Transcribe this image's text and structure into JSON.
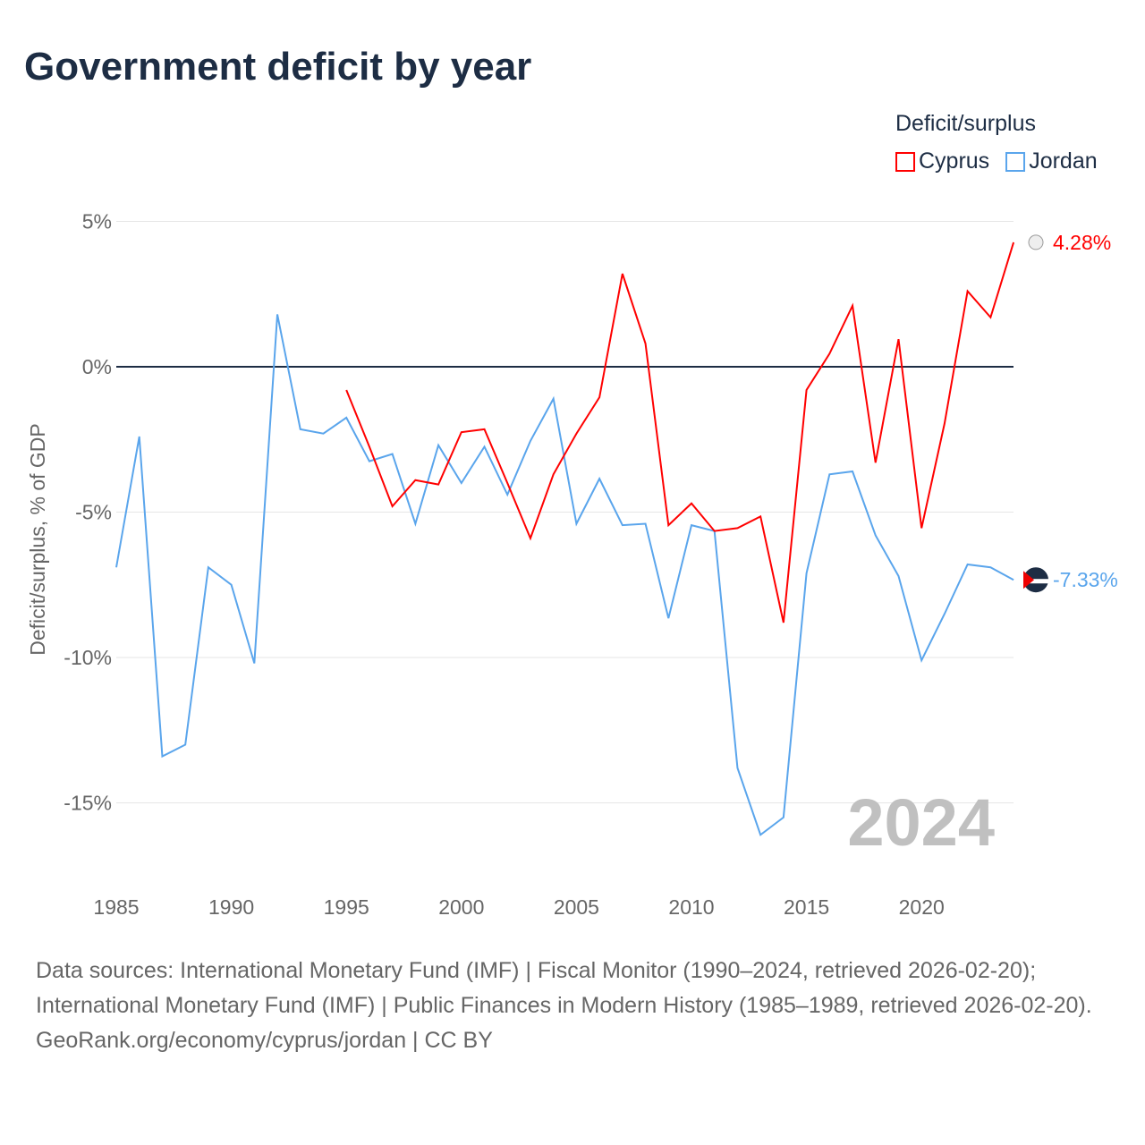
{
  "title": "Government deficit by year",
  "legend": {
    "title": "Deficit/surplus",
    "items": [
      "Cyprus",
      "Jordan"
    ]
  },
  "footer": {
    "sources": "Data sources: International Monetary Fund (IMF) | Fiscal Monitor (1990–2024, retrieved 2026-02-20); International Monetary Fund (IMF) | Public Finances in Modern History (1985–1989, retrieved 2026-02-20).",
    "credit": "GeoRank.org/economy/cyprus/jordan | CC BY"
  },
  "chart_data": {
    "type": "line",
    "title": "Government deficit by year",
    "xlabel": "",
    "ylabel": "Deficit/surplus, % of GDP",
    "xlim": [
      1985,
      2024
    ],
    "ylim": [
      -17,
      6
    ],
    "yticks": [
      5,
      0,
      -5,
      -10,
      -15
    ],
    "ytick_labels": [
      "5%",
      "0%",
      "-5%",
      "-10%",
      "-15%"
    ],
    "xticks": [
      1985,
      1990,
      1995,
      2000,
      2005,
      2010,
      2015,
      2020
    ],
    "year_label": "2024",
    "series": [
      {
        "name": "Cyprus",
        "color": "#ff0000",
        "end_label": "4.28%",
        "start": 1995,
        "values": [
          -0.8,
          -2.75,
          -4.8,
          -3.9,
          -4.05,
          -2.25,
          -2.15,
          -4.0,
          -5.9,
          -3.7,
          -2.3,
          -1.05,
          3.2,
          0.8,
          -5.45,
          -4.7,
          -5.65,
          -5.55,
          -5.15,
          -8.8,
          -0.8,
          0.45,
          2.1,
          -3.3,
          0.95,
          -5.55,
          -1.95,
          2.6,
          1.7,
          4.28
        ]
      },
      {
        "name": "Jordan",
        "color": "#5aa5ec",
        "end_label": "-7.33%",
        "start": 1985,
        "values": [
          -6.9,
          -2.4,
          -13.4,
          -13.0,
          -6.9,
          -7.5,
          -10.2,
          1.8,
          -2.15,
          -2.3,
          -1.75,
          -3.25,
          -3.0,
          -5.4,
          -2.7,
          -4.0,
          -2.75,
          -4.4,
          -2.55,
          -1.1,
          -5.4,
          -3.85,
          -5.45,
          -5.4,
          -8.65,
          -5.45,
          -5.65,
          -13.8,
          -16.1,
          -15.5,
          -7.1,
          -3.7,
          -3.6,
          -5.8,
          -7.2,
          -10.1,
          -8.5,
          -6.8,
          -6.9,
          -7.33
        ]
      }
    ]
  }
}
